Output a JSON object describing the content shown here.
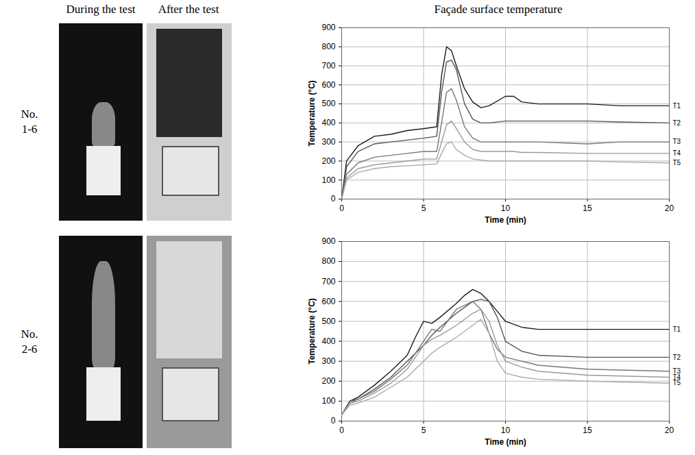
{
  "columns": [
    "During the test",
    "After the test",
    "Façade surface temperature"
  ],
  "rows": [
    "No.\n1-6",
    "No.\n2-6"
  ],
  "chart_data": [
    {
      "type": "line",
      "xlabel": "Time (min)",
      "ylabel": "Temperature (°C)",
      "xlim": [
        0,
        20
      ],
      "xticks": [
        0,
        5,
        10,
        15,
        20
      ],
      "ylim": [
        0,
        900
      ],
      "yticks": [
        0,
        100,
        200,
        300,
        400,
        500,
        600,
        700,
        800,
        900
      ],
      "grid": true,
      "x": [
        0,
        0.3,
        1,
        2,
        3,
        4,
        5,
        5.8,
        6.1,
        6.4,
        6.7,
        7,
        7.5,
        8,
        8.5,
        9,
        10,
        10.5,
        11,
        12,
        15,
        17,
        20
      ],
      "series": [
        {
          "name": "T1",
          "color": "#1a1a1a",
          "values": [
            0,
            200,
            280,
            330,
            340,
            360,
            370,
            380,
            650,
            800,
            780,
            700,
            580,
            510,
            480,
            490,
            540,
            540,
            510,
            500,
            500,
            490,
            490
          ]
        },
        {
          "name": "T2",
          "color": "#555555",
          "values": [
            0,
            170,
            250,
            290,
            300,
            310,
            320,
            330,
            560,
            720,
            730,
            680,
            500,
            420,
            400,
            400,
            410,
            410,
            410,
            410,
            410,
            405,
            400
          ]
        },
        {
          "name": "T3",
          "color": "#777777",
          "values": [
            0,
            130,
            190,
            220,
            230,
            240,
            250,
            250,
            400,
            560,
            580,
            520,
            380,
            320,
            300,
            300,
            300,
            300,
            300,
            300,
            290,
            300,
            300
          ]
        },
        {
          "name": "T4",
          "color": "#999999",
          "values": [
            0,
            110,
            160,
            180,
            190,
            200,
            210,
            210,
            300,
            390,
            410,
            370,
            300,
            260,
            250,
            250,
            250,
            250,
            245,
            245,
            240,
            240,
            240
          ]
        },
        {
          "name": "T5",
          "color": "#aaaaaa",
          "values": [
            0,
            100,
            140,
            160,
            170,
            175,
            180,
            185,
            240,
            290,
            300,
            260,
            230,
            210,
            205,
            200,
            200,
            200,
            200,
            200,
            200,
            195,
            190
          ]
        }
      ]
    },
    {
      "type": "line",
      "xlabel": "Time (min)",
      "ylabel": "Temperature (°C)",
      "xlim": [
        0,
        20
      ],
      "xticks": [
        0,
        5,
        10,
        15,
        20
      ],
      "ylim": [
        0,
        900
      ],
      "yticks": [
        0,
        100,
        200,
        300,
        400,
        500,
        600,
        700,
        800,
        900
      ],
      "grid": true,
      "x": [
        0,
        0.5,
        1,
        2,
        3,
        4,
        4.5,
        5,
        5.5,
        6,
        7,
        7.5,
        8,
        8.5,
        9,
        9.5,
        10,
        11,
        12,
        15,
        20
      ],
      "series": [
        {
          "name": "T1",
          "color": "#1a1a1a",
          "values": [
            30,
            100,
            120,
            180,
            250,
            330,
            420,
            500,
            490,
            520,
            590,
            630,
            660,
            640,
            600,
            550,
            500,
            470,
            460,
            460,
            460
          ]
        },
        {
          "name": "T2",
          "color": "#555555",
          "values": [
            30,
            100,
            110,
            160,
            220,
            300,
            340,
            380,
            430,
            470,
            540,
            570,
            600,
            610,
            600,
            520,
            400,
            350,
            330,
            320,
            320
          ]
        },
        {
          "name": "T3",
          "color": "#777777",
          "values": [
            30,
            90,
            110,
            150,
            210,
            280,
            340,
            400,
            460,
            450,
            560,
            580,
            600,
            560,
            440,
            360,
            320,
            300,
            280,
            260,
            250
          ]
        },
        {
          "name": "T4",
          "color": "#999999",
          "values": [
            30,
            90,
            100,
            140,
            190,
            260,
            320,
            380,
            410,
            430,
            480,
            510,
            540,
            560,
            500,
            380,
            300,
            270,
            250,
            230,
            220
          ]
        },
        {
          "name": "T5",
          "color": "#aaaaaa",
          "values": [
            30,
            80,
            90,
            120,
            170,
            220,
            260,
            300,
            340,
            370,
            420,
            450,
            480,
            510,
            440,
            300,
            240,
            220,
            210,
            200,
            190
          ]
        }
      ]
    }
  ]
}
